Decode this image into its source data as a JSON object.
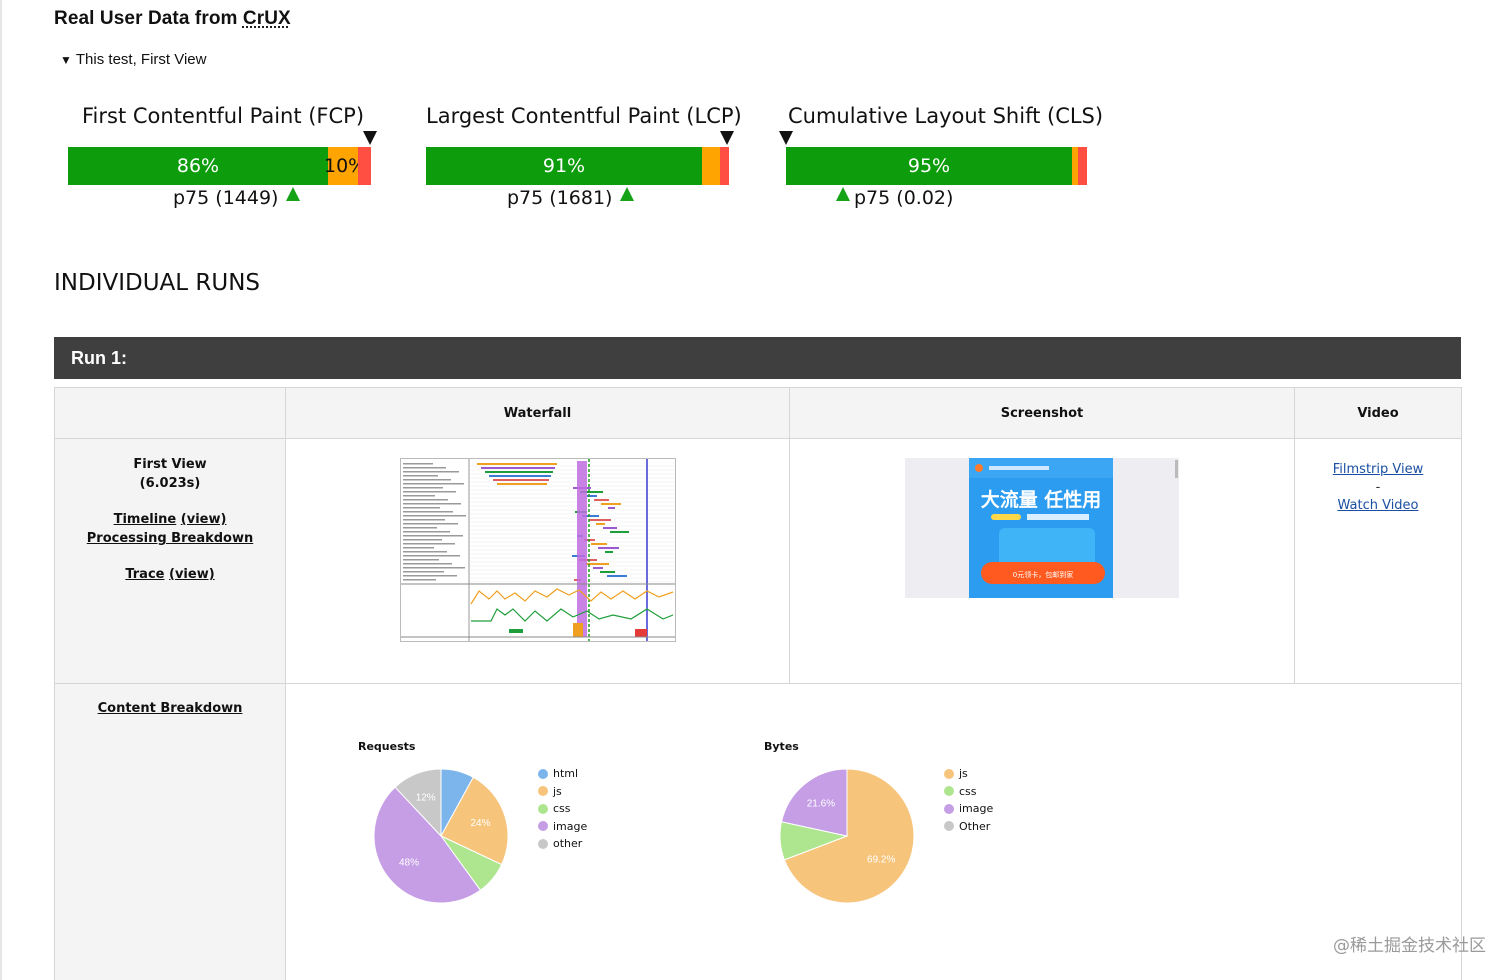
{
  "crux": {
    "title_prefix": "Real User Data from ",
    "title_abbr": "CrUX",
    "toggle_label": "This test, First View",
    "metrics": [
      {
        "title": "First Contentful Paint (FCP)",
        "good_label": "86%",
        "ni_label": "10%",
        "p75_label": "p75 (1449)",
        "good_pct": 86,
        "ni_pct": 10,
        "poor_pct": 4
      },
      {
        "title": "Largest Contentful Paint (LCP)",
        "good_label": "91%",
        "ni_label": "",
        "p75_label": "p75 (1681)",
        "good_pct": 91,
        "ni_pct": 6,
        "poor_pct": 3
      },
      {
        "title": "Cumulative Layout Shift (CLS)",
        "good_label": "95%",
        "ni_label": "",
        "p75_label": "p75 (0.02)",
        "good_pct": 95,
        "ni_pct": 2,
        "poor_pct": 3
      }
    ],
    "colors": {
      "good": "#0c9c0c",
      "ni": "#ffa400",
      "poor": "#ff4e42"
    }
  },
  "runs": {
    "section_title": "INDIVIDUAL RUNS",
    "run_label": "Run 1:",
    "table": {
      "headers": [
        "",
        "Waterfall",
        "Screenshot",
        "Video"
      ],
      "first_view": {
        "label": "First View",
        "time": "(6.023s)",
        "timeline": "Timeline",
        "timeline_view": "(view)",
        "processing": "Processing Breakdown",
        "trace": "Trace",
        "trace_view": "(view)"
      },
      "video": {
        "filmstrip": "Filmstrip View",
        "separator": "-",
        "watch": "Watch Video"
      },
      "screenshot_text": {
        "headline": "大流量 任性用",
        "button": "0元领卡，包邮到家"
      },
      "content_breakdown": "Content Breakdown"
    }
  },
  "chart_data": [
    {
      "type": "pie",
      "title": "Requests",
      "categories": [
        "html",
        "js",
        "css",
        "image",
        "other"
      ],
      "values": [
        8,
        24,
        8,
        48,
        12
      ],
      "data_labels": [
        "",
        "24%",
        "",
        "48%",
        "12%"
      ],
      "colors": [
        "#7cb5ec",
        "#f7c47c",
        "#aee68f",
        "#c59ee6",
        "#c8c8c8"
      ],
      "legend_position": "right"
    },
    {
      "type": "pie",
      "title": "Bytes",
      "categories": [
        "js",
        "css",
        "image",
        "Other"
      ],
      "values": [
        69.2,
        9.2,
        21.6,
        0
      ],
      "data_labels": [
        "69.2%",
        "",
        "21.6%",
        ""
      ],
      "colors": [
        "#f7c47c",
        "#aee68f",
        "#c59ee6",
        "#c8c8c8"
      ],
      "legend_position": "right"
    }
  ],
  "watermark": "@稀土掘金技术社区"
}
